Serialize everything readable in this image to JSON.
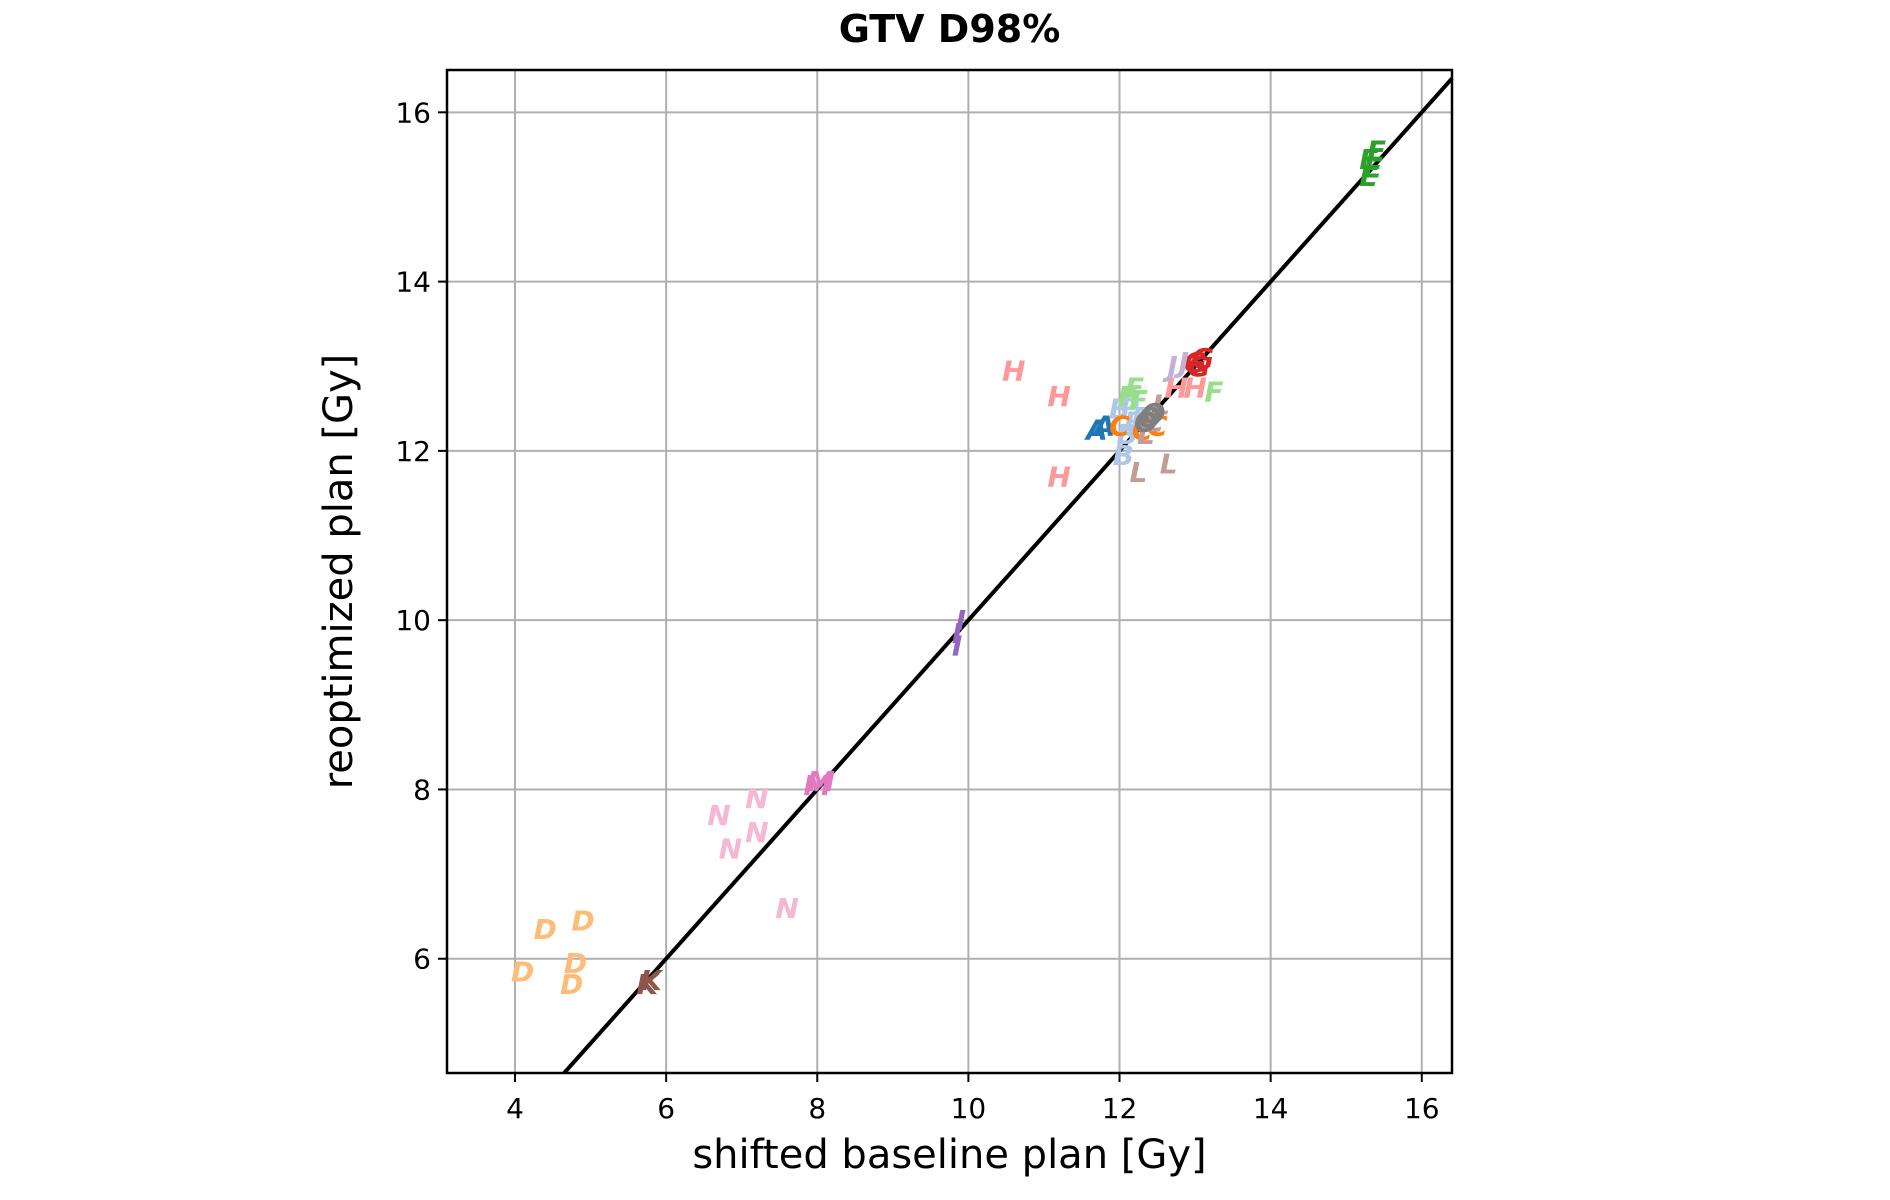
{
  "chart_data": {
    "type": "scatter",
    "title": "GTV D98%",
    "xlabel": "shifted baseline plan [Gy]",
    "ylabel": "reoptimized plan [Gy]",
    "xlim": [
      3.1,
      16.4
    ],
    "ylim": [
      4.65,
      16.5
    ],
    "xticks": [
      4,
      6,
      8,
      10,
      12,
      14,
      16
    ],
    "yticks": [
      6,
      8,
      10,
      12,
      14,
      16
    ],
    "grid": true,
    "legend": "none",
    "identity_line": {
      "from": [
        3.1,
        3.1
      ],
      "to": [
        16.4,
        16.4
      ],
      "color": "#000000"
    },
    "series": [
      {
        "letter": "A",
        "color": "#1f77b4",
        "points": [
          [
            11.7,
            12.25
          ],
          [
            11.8,
            12.3
          ]
        ]
      },
      {
        "letter": "B",
        "color": "#aec7e8",
        "points": [
          [
            12.0,
            12.5
          ],
          [
            12.1,
            12.2
          ],
          [
            12.2,
            12.35
          ],
          [
            12.3,
            12.4
          ],
          [
            12.05,
            11.95
          ],
          [
            12.15,
            12.6
          ]
        ]
      },
      {
        "letter": "C",
        "color": "#ff7f0e",
        "points": [
          [
            12.0,
            12.3
          ],
          [
            12.3,
            12.25
          ],
          [
            12.45,
            12.35
          ],
          [
            12.5,
            12.3
          ]
        ]
      },
      {
        "letter": "D",
        "color": "#ffbb78",
        "points": [
          [
            4.1,
            5.85
          ],
          [
            4.4,
            6.35
          ],
          [
            4.8,
            5.95
          ],
          [
            4.75,
            5.7
          ],
          [
            4.9,
            6.45
          ]
        ]
      },
      {
        "letter": "E",
        "color": "#2ca02c",
        "points": [
          [
            15.3,
            15.25
          ],
          [
            15.35,
            15.35
          ],
          [
            15.4,
            15.55
          ],
          [
            15.3,
            15.45
          ]
        ]
      },
      {
        "letter": "F",
        "color": "#98df8a",
        "points": [
          [
            12.1,
            12.65
          ],
          [
            12.25,
            12.6
          ],
          [
            13.25,
            12.7
          ],
          [
            12.2,
            12.75
          ]
        ]
      },
      {
        "letter": "G",
        "color": "#d62728",
        "points": [
          [
            13.0,
            13.05
          ],
          [
            13.05,
            13.0
          ],
          [
            13.1,
            13.1
          ]
        ]
      },
      {
        "letter": "H",
        "color": "#ff9896",
        "points": [
          [
            10.6,
            12.95
          ],
          [
            11.2,
            12.65
          ],
          [
            11.2,
            11.7
          ],
          [
            13.0,
            12.75
          ],
          [
            12.75,
            12.75
          ]
        ]
      },
      {
        "letter": "I",
        "color": "#9467bd",
        "points": [
          [
            9.85,
            9.85
          ],
          [
            9.9,
            10.0
          ],
          [
            9.85,
            9.7
          ]
        ]
      },
      {
        "letter": "J",
        "color": "#c5b0d5",
        "points": [
          [
            12.7,
            13.0
          ],
          [
            12.85,
            13.05
          ]
        ]
      },
      {
        "letter": "K",
        "color": "#8c564b",
        "points": [
          [
            5.75,
            5.7
          ],
          [
            5.8,
            5.75
          ]
        ]
      },
      {
        "letter": "L",
        "color": "#c49c94",
        "points": [
          [
            12.25,
            11.75
          ],
          [
            12.65,
            11.85
          ],
          [
            12.45,
            12.35
          ],
          [
            12.35,
            12.2
          ],
          [
            12.55,
            12.55
          ]
        ]
      },
      {
        "letter": "M",
        "color": "#e377c2",
        "points": [
          [
            8.0,
            8.05
          ],
          [
            8.05,
            8.1
          ]
        ]
      },
      {
        "letter": "N",
        "color": "#f7b6d2",
        "points": [
          [
            6.7,
            7.7
          ],
          [
            7.2,
            7.9
          ],
          [
            7.2,
            7.5
          ],
          [
            6.85,
            7.3
          ],
          [
            7.6,
            6.6
          ]
        ]
      },
      {
        "letter": "O",
        "color": "#7f7f7f",
        "points": [
          [
            12.35,
            12.35
          ],
          [
            12.45,
            12.45
          ],
          [
            12.4,
            12.4
          ]
        ]
      }
    ]
  }
}
